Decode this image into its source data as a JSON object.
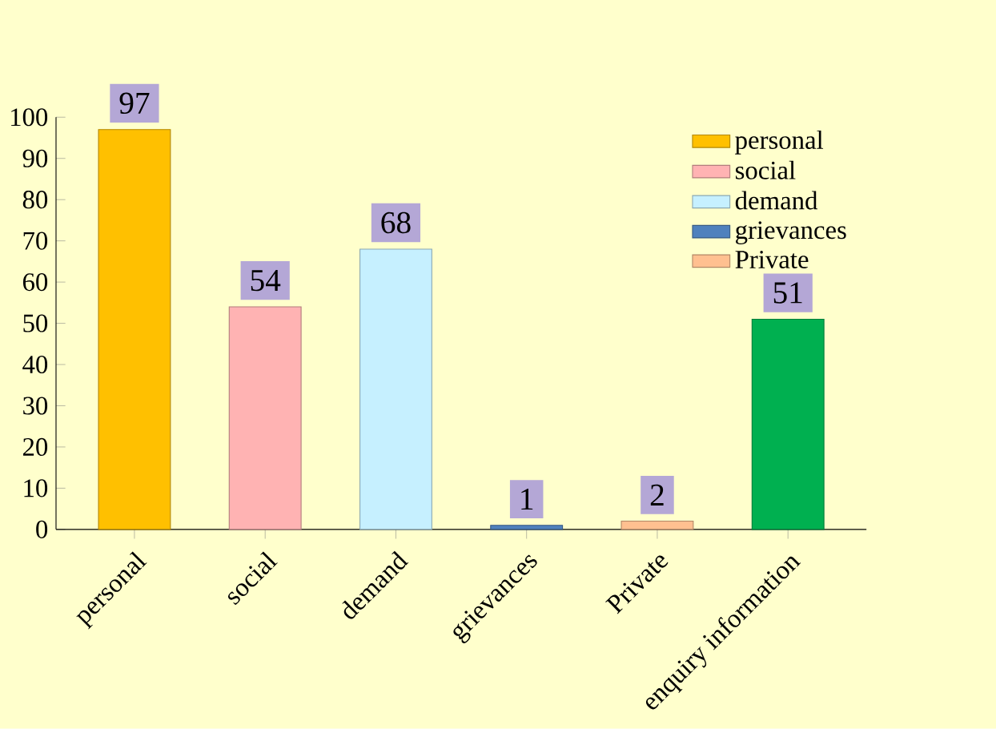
{
  "chart_data": {
    "type": "bar",
    "categories": [
      "personal",
      "social",
      "demand",
      "grievances",
      "Private",
      "enquiry information"
    ],
    "series": [
      {
        "name": "personal",
        "color": "#ffc000",
        "values": [
          97,
          null,
          null,
          null,
          null,
          null
        ]
      },
      {
        "name": "social",
        "color": "#ffb3b3",
        "values": [
          null,
          54,
          null,
          null,
          null,
          null
        ]
      },
      {
        "name": "demand",
        "color": "#c6f0ff",
        "values": [
          null,
          null,
          68,
          null,
          null,
          null
        ]
      },
      {
        "name": "grievances",
        "color": "#4f81bd",
        "values": [
          null,
          null,
          null,
          1,
          null,
          null
        ]
      },
      {
        "name": "Private",
        "color": "#ffc090",
        "values": [
          null,
          null,
          null,
          null,
          2,
          null
        ]
      },
      {
        "color": "#00b050",
        "values": [
          null,
          null,
          null,
          null,
          null,
          51
        ]
      }
    ],
    "ylim": [
      0,
      100
    ],
    "yticks": [
      0,
      10,
      20,
      30,
      40,
      50,
      60,
      70,
      80,
      90,
      100
    ],
    "data_labels": true,
    "legend": "top right",
    "grid": false
  }
}
